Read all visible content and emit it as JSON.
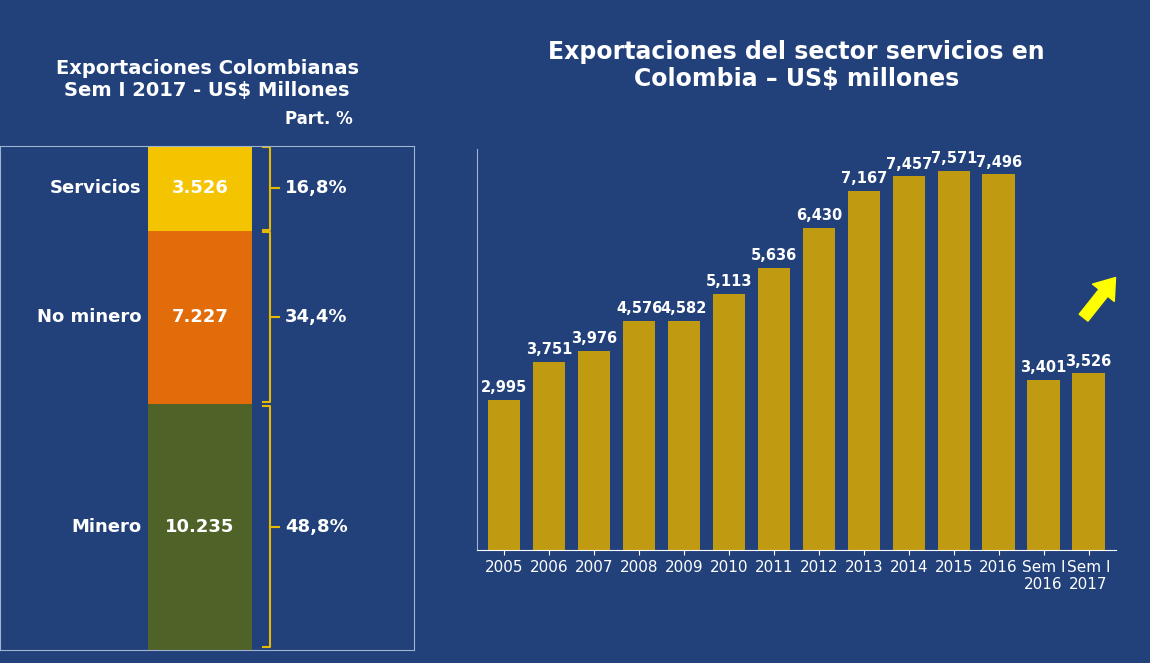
{
  "chart_data": [
    {
      "type": "bar",
      "stacked": true,
      "title": "Exportaciones Colombianas\nSem I 2017 - US$ Millones",
      "annotations": [
        "Part. %"
      ],
      "categories": [
        null
      ],
      "ylim": [
        0,
        20988
      ],
      "tick_labels": false,
      "data_labels": true,
      "series": [
        {
          "name": "Minero",
          "color": "#4f6228",
          "values": [
            10235
          ],
          "value_labels": [
            "10.235"
          ],
          "share": [
            48.8
          ],
          "share_labels": [
            "48,8%"
          ]
        },
        {
          "name": "No minero",
          "color": "#e36c0a",
          "values": [
            7227
          ],
          "value_labels": [
            "7.227"
          ],
          "share": [
            34.4
          ],
          "share_labels": [
            "34,4%"
          ]
        },
        {
          "name": "Servicios",
          "color": "#f5c400",
          "values": [
            3526
          ],
          "value_labels": [
            "3.526"
          ],
          "share": [
            16.8
          ],
          "share_labels": [
            "16,8%"
          ]
        }
      ]
    },
    {
      "type": "bar",
      "title": "Exportaciones del sector servicios en\nColombia – US$ millones",
      "categories": [
        "2005",
        "2006",
        "2007",
        "2008",
        "2009",
        "2010",
        "2011",
        "2012",
        "2013",
        "2014",
        "2015",
        "2016",
        "Sem I\n2016",
        "Sem I\n2017"
      ],
      "values": [
        2995,
        3751,
        3976,
        4576,
        4582,
        5113,
        5636,
        6430,
        7167,
        7457,
        7571,
        7496,
        3401,
        3526
      ],
      "value_labels": [
        "2,995",
        "3,751",
        "3,976",
        "4,576",
        "4,582",
        "5,113",
        "5,636",
        "6,430",
        "7,167",
        "7,457",
        "7,571",
        "7,496",
        "3,401",
        "3,526"
      ],
      "color": "#c09a10",
      "ylim": [
        0,
        8000
      ],
      "tick_labels": "x",
      "data_labels": true,
      "grid": false
    }
  ]
}
